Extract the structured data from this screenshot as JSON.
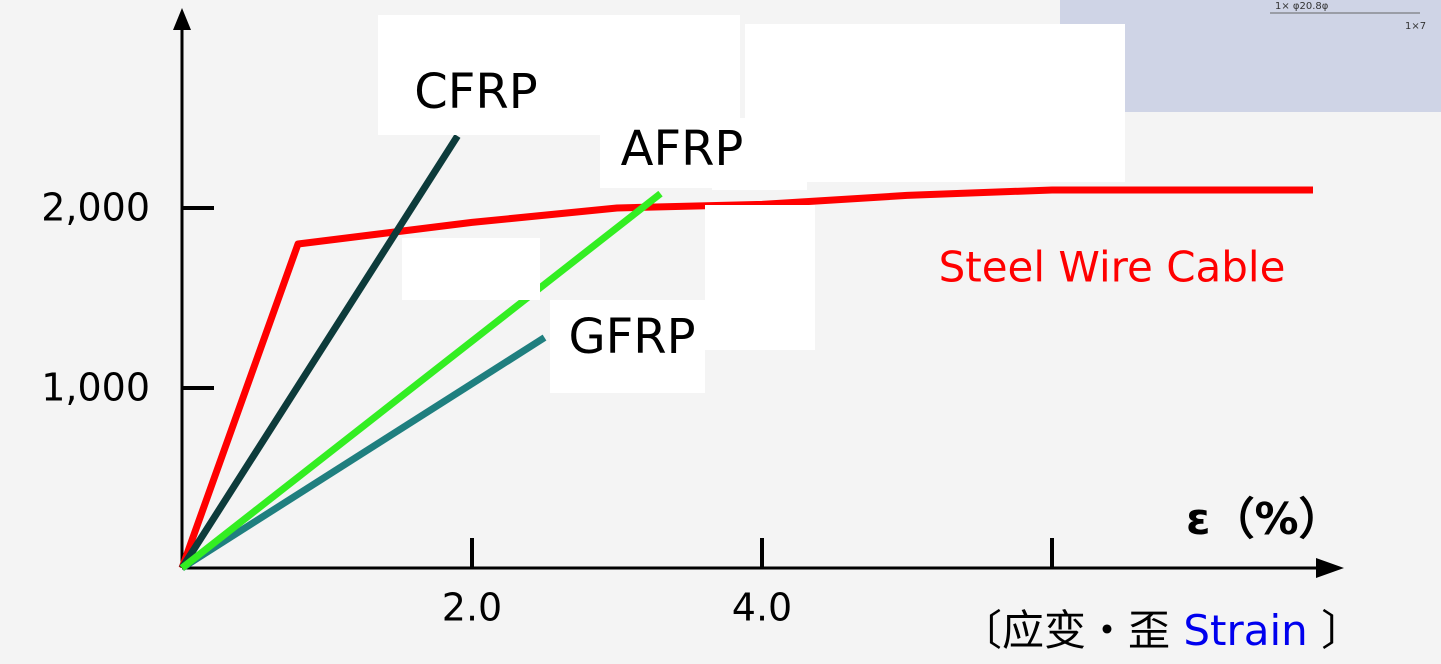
{
  "chart_data": {
    "type": "line",
    "x_label": "ε（%）",
    "x_title": [
      "〔应变・歪 ",
      "Strain",
      " 〕"
    ],
    "inset_texts": [
      "1× φ20.8φ",
      "1×7"
    ],
    "xlim": [
      0,
      8
    ],
    "ylim": [
      0,
      3000
    ],
    "xticks": [
      {
        "value": 2,
        "label": "2.0"
      },
      {
        "value": 4,
        "label": "4.0"
      },
      {
        "value": 6,
        "label": null
      }
    ],
    "yticks": [
      {
        "value": 1000,
        "label": "1,000"
      },
      {
        "value": 2000,
        "label": "2,000"
      }
    ],
    "series": [
      {
        "name": "Steel Wire Cable",
        "color": "#ff0000",
        "x": [
          0,
          0.8,
          2.0,
          3.0,
          4.0,
          5.0,
          6.0,
          7.8
        ],
        "values": [
          0,
          1800,
          1920,
          2000,
          2020,
          2070,
          2100,
          2100
        ]
      },
      {
        "name": "CFRP",
        "color": "#0d3b3b",
        "x": [
          0,
          1.9
        ],
        "values": [
          0,
          2400
        ]
      },
      {
        "name": "GFRP",
        "color": "#1f7f7f",
        "x": [
          0,
          2.5
        ],
        "values": [
          0,
          1280
        ]
      },
      {
        "name": "AFRP",
        "color": "#33ee22",
        "x": [
          0,
          3.3
        ],
        "values": [
          0,
          2080
        ]
      }
    ]
  }
}
